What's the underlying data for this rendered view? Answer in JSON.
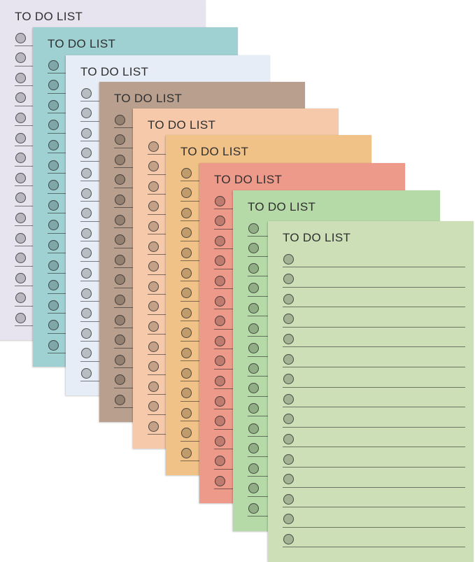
{
  "pads": [
    {
      "id": "lavender",
      "color": "#e7e4ef",
      "title": "TO DO LIST"
    },
    {
      "id": "teal",
      "color": "#9fd0d2",
      "title": "TO DO LIST"
    },
    {
      "id": "ice-blue",
      "color": "#e6edf6",
      "title": "TO DO LIST"
    },
    {
      "id": "taupe",
      "color": "#b9a08e",
      "title": "TO DO LIST"
    },
    {
      "id": "peach",
      "color": "#f5c9a9",
      "title": "TO DO LIST"
    },
    {
      "id": "apricot",
      "color": "#f1c288",
      "title": "TO DO LIST"
    },
    {
      "id": "coral",
      "color": "#ee9a8b",
      "title": "TO DO LIST"
    },
    {
      "id": "mint",
      "color": "#b6d9a8",
      "title": "TO DO LIST"
    },
    {
      "id": "sage",
      "color": "#ccdfb7",
      "title": "TO DO LIST"
    }
  ]
}
